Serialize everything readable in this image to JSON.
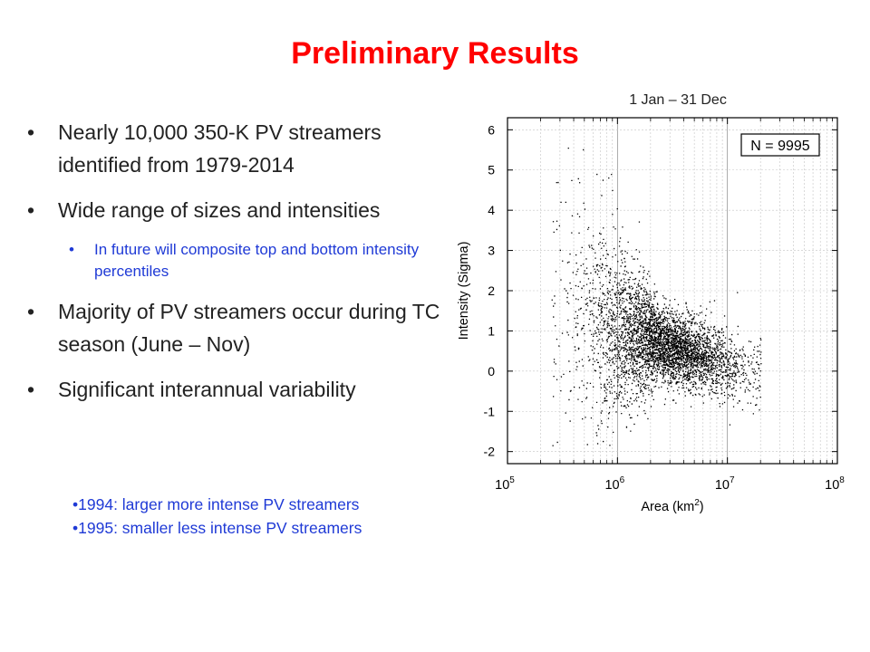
{
  "slide": {
    "title": "Preliminary Results",
    "bullets": [
      {
        "text": "Nearly 10,000 350-K PV streamers identified from 1979-2014"
      },
      {
        "text": "Wide range of sizes and intensities"
      },
      {
        "text": "In future will composite top and bottom intensity percentiles",
        "level": 2
      },
      {
        "text": "Majority of PV streamers occur during TC season (June – Nov)"
      },
      {
        "text": "Significant interannual variability"
      }
    ],
    "subbullets": [
      "1994: larger more intense PV streamers",
      "1995: smaller less intense PV streamers"
    ]
  },
  "chart_data": {
    "type": "scatter",
    "title": "1 Jan – 31 Dec",
    "xlabel": "Area (km",
    "xlabel_sup": "2",
    "xlabel_close": ")",
    "ylabel": "Intensity (Sigma)",
    "x_scale": "log",
    "xlim": [
      100000,
      100000000
    ],
    "ylim": [
      -2.3,
      6.3
    ],
    "x_ticks": [
      {
        "base": "10",
        "exp": "5"
      },
      {
        "base": "10",
        "exp": "6"
      },
      {
        "base": "10",
        "exp": "7"
      },
      {
        "base": "10",
        "exp": "8"
      }
    ],
    "y_ticks": [
      "-2",
      "-1",
      "0",
      "1",
      "2",
      "3",
      "4",
      "5",
      "6"
    ],
    "grid": true,
    "annotation": "N = 9995",
    "n_points": 9995,
    "distribution": {
      "area_center_km2": 2500000,
      "intensity_center_sigma": 0.7,
      "area_range_km2": [
        250000,
        20000000
      ],
      "intensity_range_sigma": [
        -1.9,
        5.6
      ]
    }
  }
}
